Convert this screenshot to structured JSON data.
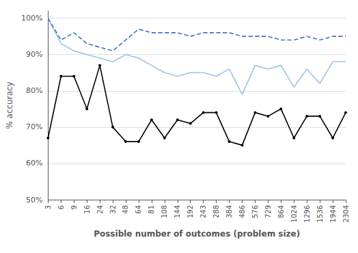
{
  "chart_data": {
    "type": "line",
    "xlabel": "Possible number of outcomes (problem size)",
    "ylabel": "% accuracy",
    "categories": [
      "3",
      "6",
      "9",
      "16",
      "24",
      "32",
      "48",
      "64",
      "81",
      "108",
      "144",
      "192",
      "243",
      "288",
      "384",
      "486",
      "576",
      "729",
      "864",
      "1024",
      "1296",
      "1536",
      "1944",
      "2304"
    ],
    "series": [
      {
        "color": "#9DC3E6",
        "line_style": "solid",
        "marker": "none",
        "values": [
          1.0,
          0.93,
          0.91,
          0.9,
          0.89,
          0.88,
          0.9,
          0.89,
          0.87,
          0.85,
          0.84,
          0.85,
          0.85,
          0.84,
          0.86,
          0.79,
          0.87,
          0.86,
          0.87,
          0.81,
          0.86,
          0.82,
          0.88,
          0.88
        ]
      },
      {
        "color": "#4472C4",
        "line_style": "dashed",
        "marker": "none",
        "values": [
          1.0,
          0.94,
          0.96,
          0.93,
          0.92,
          0.91,
          0.94,
          0.97,
          0.96,
          0.96,
          0.96,
          0.95,
          0.96,
          0.96,
          0.96,
          0.95,
          0.95,
          0.95,
          0.94,
          0.94,
          0.95,
          0.94,
          0.95,
          0.95
        ]
      },
      {
        "color": "#000000",
        "line_style": "solid",
        "marker": "circle",
        "values": [
          0.67,
          0.84,
          0.84,
          0.75,
          0.87,
          0.7,
          0.66,
          0.66,
          0.72,
          0.67,
          0.72,
          0.71,
          0.74,
          0.74,
          0.66,
          0.65,
          0.74,
          0.73,
          0.75,
          0.67,
          0.73,
          0.73,
          0.67,
          0.74
        ]
      }
    ],
    "ylim": [
      0.5,
      1.02
    ],
    "yticks": [
      {
        "value": 0.5,
        "label": "50%"
      },
      {
        "value": 0.6,
        "label": "60%"
      },
      {
        "value": 0.7,
        "label": "70%"
      },
      {
        "value": 0.8,
        "label": "80%"
      },
      {
        "value": 0.9,
        "label": "90%"
      },
      {
        "value": 1.0,
        "label": "100%"
      }
    ],
    "grid": true,
    "legend": false
  }
}
